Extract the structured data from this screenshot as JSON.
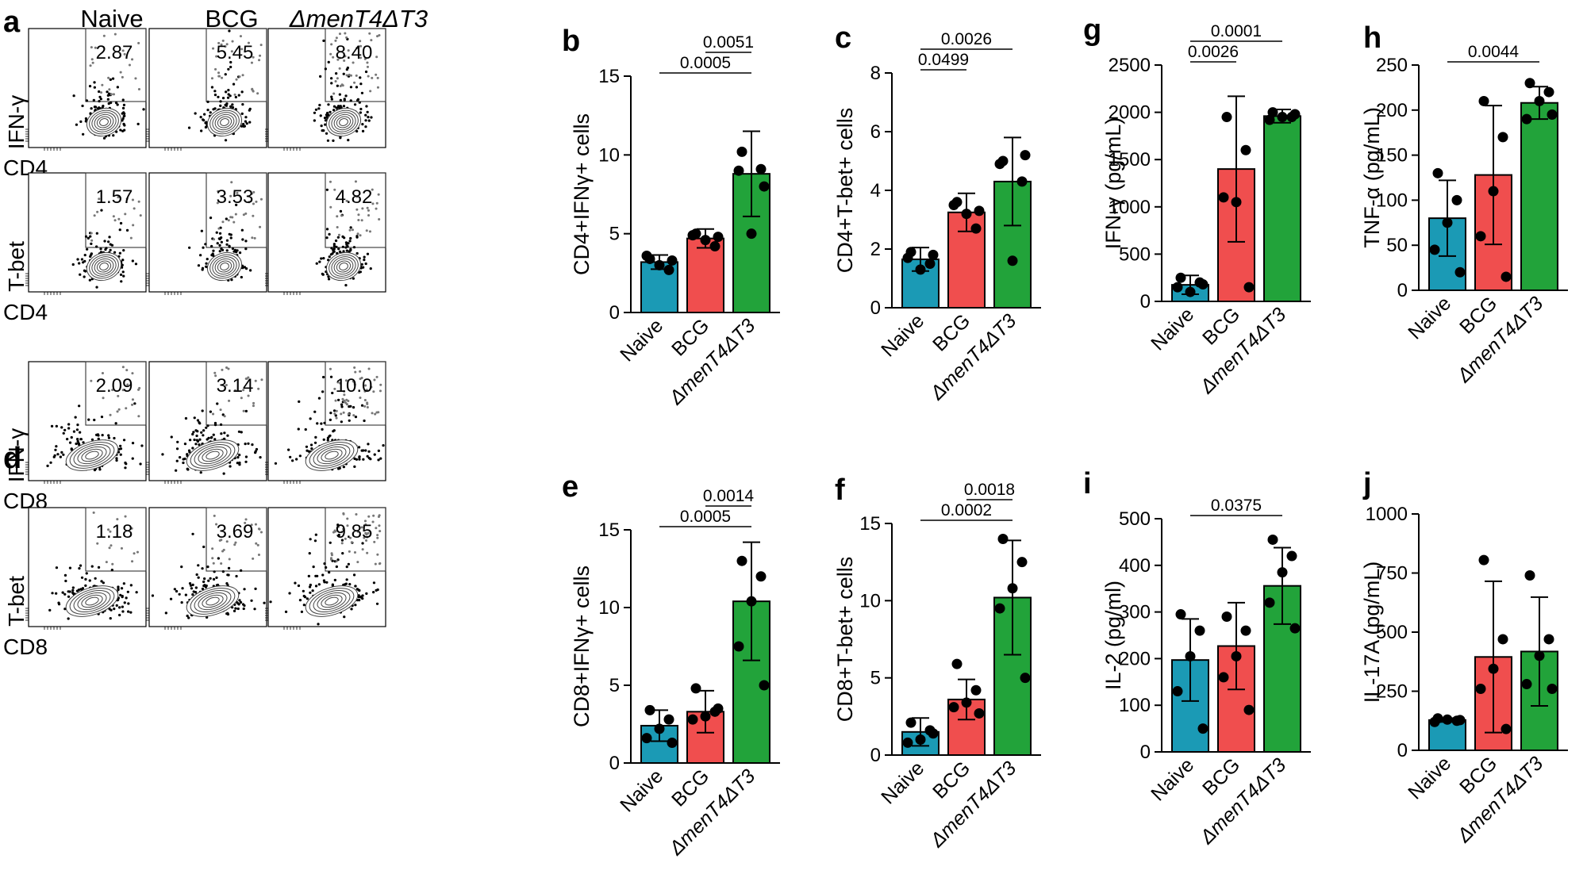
{
  "colors": {
    "naive": "#1b9ab5",
    "bcg": "#f04e4e",
    "mutant": "#22a33a",
    "flow_axis": "#000000",
    "gate": "#333333"
  },
  "panel_letters": [
    "a",
    "b",
    "c",
    "g",
    "h",
    "d",
    "e",
    "f",
    "i",
    "j"
  ],
  "flow": {
    "column_heads": [
      "Naive",
      "BCG",
      "ΔmenT4ΔT3"
    ],
    "blocks": [
      {
        "letter": "a",
        "rows": [
          {
            "ylabel": "IFN-γ",
            "xlabel": "CD4",
            "values": [
              "2.87",
              "5.45",
              "8.40"
            ]
          },
          {
            "ylabel": "T-bet",
            "xlabel": "CD4",
            "values": [
              "1.57",
              "3.53",
              "4.82"
            ]
          }
        ]
      },
      {
        "letter": "d",
        "rows": [
          {
            "ylabel": "IFN-γ",
            "xlabel": "CD8",
            "values": [
              "2.09",
              "3.14",
              "10.0"
            ]
          },
          {
            "ylabel": "T-bet",
            "xlabel": "CD8",
            "values": [
              "1.18",
              "3.69",
              "9.85"
            ]
          }
        ]
      }
    ]
  },
  "chart_data": [
    {
      "panel": "b",
      "type": "bar",
      "ylabel": "CD4+IFNγ+ cells",
      "categories": [
        "Naive",
        "BCG",
        "ΔmenT4ΔT3"
      ],
      "yticks": [
        0,
        5,
        10,
        15
      ],
      "ylim": [
        0,
        15
      ],
      "values": [
        3.2,
        4.7,
        8.8
      ],
      "errors": [
        0.45,
        0.6,
        2.7
      ],
      "points": [
        [
          3.4,
          2.7,
          3.0,
          3.6,
          3.3
        ],
        [
          5.0,
          4.2,
          4.6,
          4.9,
          4.8
        ],
        [
          10.2,
          9.1,
          5.0,
          9.0,
          8.0
        ]
      ],
      "comparisons": [
        {
          "from": 1,
          "to": 2,
          "label": "0.0051"
        },
        {
          "from": 0,
          "to": 2,
          "label": "0.0005"
        }
      ]
    },
    {
      "panel": "c",
      "type": "bar",
      "ylabel": "CD4+T-bet+ cells",
      "categories": [
        "Naive",
        "BCG",
        "ΔmenT4ΔT3"
      ],
      "yticks": [
        0,
        2,
        4,
        6,
        8
      ],
      "ylim": [
        0,
        8
      ],
      "values": [
        1.65,
        3.25,
        4.3
      ],
      "errors": [
        0.4,
        0.65,
        1.5
      ],
      "points": [
        [
          1.9,
          1.5,
          1.3,
          1.7,
          1.8
        ],
        [
          3.6,
          2.7,
          3.2,
          3.5,
          3.3
        ],
        [
          5.0,
          4.3,
          1.6,
          4.9,
          5.2
        ]
      ],
      "comparisons": [
        {
          "from": 0,
          "to": 1,
          "label": "0.0499"
        },
        {
          "from": 0,
          "to": 2,
          "label": "0.0026"
        }
      ]
    },
    {
      "panel": "g",
      "type": "bar",
      "ylabel": "IFN-γ (pg/mL)",
      "categories": [
        "Naive",
        "BCG",
        "ΔmenT4ΔT3"
      ],
      "yticks": [
        0,
        500,
        1000,
        1500,
        2000,
        2500
      ],
      "ylim": [
        0,
        2500
      ],
      "values": [
        175,
        1400,
        1960
      ],
      "errors": [
        100,
        770,
        70
      ],
      "points": [
        [
          250,
          200,
          100,
          150,
          180
        ],
        [
          1950,
          1600,
          1050,
          1100,
          150
        ],
        [
          2000,
          1950,
          1950,
          1920,
          1980
        ]
      ],
      "comparisons": [
        {
          "from": 0,
          "to": 1,
          "label": "0.0026"
        },
        {
          "from": 0,
          "to": 2,
          "label": "0.0001"
        }
      ]
    },
    {
      "panel": "h",
      "type": "bar",
      "ylabel": "TNF-α (pg/mL)",
      "categories": [
        "Naive",
        "BCG",
        "ΔmenT4ΔT3"
      ],
      "yticks": [
        0,
        50,
        100,
        150,
        200,
        250
      ],
      "ylim": [
        0,
        250
      ],
      "values": [
        80,
        128,
        208
      ],
      "errors": [
        42,
        77,
        18
      ],
      "points": [
        [
          130,
          100,
          75,
          45,
          20
        ],
        [
          210,
          170,
          110,
          60,
          15
        ],
        [
          230,
          220,
          210,
          190,
          195
        ]
      ],
      "comparisons": [
        {
          "from": 0,
          "to": 2,
          "label": "0.0044"
        }
      ]
    },
    {
      "panel": "e",
      "type": "bar",
      "ylabel": "CD8+IFNγ+ cells",
      "categories": [
        "Naive",
        "BCG",
        "ΔmenT4ΔT3"
      ],
      "yticks": [
        0,
        5,
        10,
        15
      ],
      "ylim": [
        0,
        15
      ],
      "values": [
        2.4,
        3.3,
        10.4
      ],
      "errors": [
        1.0,
        1.35,
        3.8
      ],
      "points": [
        [
          3.4,
          2.8,
          2.2,
          1.6,
          1.3
        ],
        [
          4.8,
          3.3,
          3.0,
          2.8,
          3.5
        ],
        [
          13.0,
          12.0,
          10.4,
          7.5,
          5.0
        ]
      ],
      "comparisons": [
        {
          "from": 1,
          "to": 2,
          "label": "0.0014"
        },
        {
          "from": 0,
          "to": 2,
          "label": "0.0005"
        }
      ]
    },
    {
      "panel": "f",
      "type": "bar",
      "ylabel": "CD8+T-bet+ cells",
      "categories": [
        "Naive",
        "BCG",
        "ΔmenT4ΔT3"
      ],
      "yticks": [
        0,
        5,
        10,
        15
      ],
      "ylim": [
        0,
        15
      ],
      "values": [
        1.5,
        3.6,
        10.2
      ],
      "errors": [
        0.9,
        1.3,
        3.7
      ],
      "points": [
        [
          2.1,
          1.6,
          1.0,
          0.8,
          1.4
        ],
        [
          5.9,
          4.2,
          3.4,
          3.1,
          2.7
        ],
        [
          14.0,
          12.5,
          10.8,
          9.5,
          5.0
        ]
      ],
      "comparisons": [
        {
          "from": 1,
          "to": 2,
          "label": "0.0018"
        },
        {
          "from": 0,
          "to": 2,
          "label": "0.0002"
        }
      ]
    },
    {
      "panel": "i",
      "type": "bar",
      "ylabel": "IL-2 (pg/ml)",
      "categories": [
        "Naive",
        "BCG",
        "ΔmenT4ΔT3"
      ],
      "yticks": [
        0,
        100,
        200,
        300,
        400,
        500
      ],
      "ylim": [
        0,
        500
      ],
      "values": [
        197,
        227,
        356
      ],
      "errors": [
        88,
        93,
        82
      ],
      "points": [
        [
          295,
          260,
          205,
          130,
          50
        ],
        [
          290,
          260,
          205,
          160,
          90
        ],
        [
          455,
          420,
          385,
          320,
          265
        ]
      ],
      "comparisons": [
        {
          "from": 0,
          "to": 2,
          "label": "0.0375"
        }
      ]
    },
    {
      "panel": "j",
      "type": "bar",
      "ylabel": "IL-17A (pg/mL)",
      "categories": [
        "Naive",
        "BCG",
        "ΔmenT4ΔT3"
      ],
      "yticks": [
        0,
        250,
        500,
        750,
        1000
      ],
      "ylim": [
        0,
        1000
      ],
      "values": [
        128,
        395,
        418
      ],
      "errors": [
        8,
        320,
        230
      ],
      "points": [
        [
          135,
          125,
          130,
          120,
          128
        ],
        [
          805,
          470,
          345,
          260,
          90
        ],
        [
          740,
          470,
          400,
          280,
          260
        ]
      ],
      "comparisons": []
    }
  ]
}
